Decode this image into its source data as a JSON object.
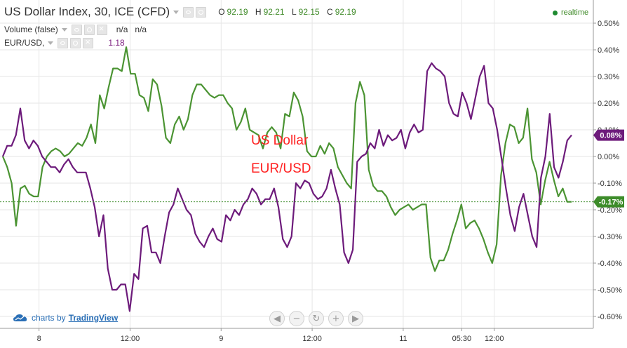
{
  "header": {
    "symbol_title": "US Dollar Index, 30, ICE (CFD)",
    "ohlc": {
      "o_label": "O",
      "o_value": "92.19",
      "h_label": "H",
      "h_value": "92.21",
      "l_label": "L",
      "l_value": "92.15",
      "c_label": "C",
      "c_value": "92.19"
    },
    "volume_label": "Volume (false)",
    "volume_value_1": "n/a",
    "volume_value_2": "n/a",
    "eurusd_label": "EUR/USD,",
    "eurusd_value": "1.18",
    "realtime_label": "realtime"
  },
  "annotations": {
    "us_dollar": "US Dollar",
    "eur_usd": "EUR/USD"
  },
  "branding": {
    "prefix": "charts by",
    "name": "TradingView"
  },
  "controls": [
    "scroll-left",
    "zoom-out",
    "reset",
    "zoom-in",
    "scroll-right"
  ],
  "colors": {
    "usd_line": "#4b9433",
    "eur_line": "#6d1b7b",
    "usd_badge": "#3d8c2a",
    "eur_badge": "#6d1b7b",
    "annotation": "#ff2020",
    "branding": "#2a6fb6"
  },
  "chart_data": {
    "type": "line",
    "y_axis": {
      "unit": "%",
      "ticks": [
        "0.50%",
        "0.40%",
        "0.30%",
        "0.20%",
        "0.10%",
        "0.00%",
        "-0.10%",
        "-0.20%",
        "-0.30%",
        "-0.40%",
        "-0.50%",
        "-0.60%"
      ],
      "tick_values": [
        0.5,
        0.4,
        0.3,
        0.2,
        0.1,
        0.0,
        -0.1,
        -0.2,
        -0.3,
        -0.4,
        -0.5,
        -0.6
      ],
      "ylim": [
        -0.62,
        0.58
      ]
    },
    "x_axis": {
      "ticks": [
        "8",
        "12:00",
        "9",
        "12:00",
        "11",
        "05:30",
        "12:00"
      ],
      "tick_positions": [
        6,
        20,
        34,
        48,
        62,
        71,
        76
      ],
      "xlim": [
        0,
        88
      ]
    },
    "grid": true,
    "series": [
      {
        "name": "US Dollar",
        "color": "#4b9433",
        "last_value_label": "-0.17%",
        "last_value": -0.17,
        "values": [
          0.0,
          -0.04,
          -0.1,
          -0.26,
          -0.12,
          -0.11,
          -0.14,
          -0.15,
          -0.15,
          -0.04,
          0.0,
          0.02,
          0.03,
          0.02,
          0.0,
          0.01,
          0.03,
          0.05,
          0.04,
          0.07,
          0.12,
          0.05,
          0.23,
          0.18,
          0.26,
          0.33,
          0.33,
          0.32,
          0.41,
          0.31,
          0.31,
          0.23,
          0.22,
          0.17,
          0.29,
          0.27,
          0.19,
          0.07,
          0.05,
          0.12,
          0.15,
          0.1,
          0.14,
          0.23,
          0.27,
          0.27,
          0.25,
          0.23,
          0.22,
          0.23,
          0.23,
          0.2,
          0.18,
          0.1,
          0.13,
          0.18,
          0.1,
          0.09,
          0.08,
          0.03,
          0.09,
          0.11,
          0.09,
          0.03,
          0.16,
          0.15,
          0.24,
          0.21,
          0.15,
          0.02,
          0.0,
          0.0,
          0.04,
          0.01,
          0.05,
          0.03,
          -0.04,
          -0.07,
          -0.1,
          -0.12,
          0.2,
          0.28,
          0.23,
          -0.05,
          -0.11,
          -0.13,
          -0.13,
          -0.15,
          -0.19,
          -0.22,
          -0.2,
          -0.19,
          -0.18,
          -0.2,
          -0.19,
          -0.18,
          -0.18,
          -0.38,
          -0.43,
          -0.39,
          -0.39,
          -0.35,
          -0.29,
          -0.24,
          -0.18,
          -0.27,
          -0.25,
          -0.24,
          -0.27,
          -0.31,
          -0.36,
          -0.4,
          -0.33,
          -0.07,
          0.05,
          0.12,
          0.11,
          0.05,
          0.07,
          0.18,
          -0.01,
          -0.06,
          -0.18,
          -0.09,
          -0.02,
          -0.09,
          -0.15,
          -0.12,
          -0.17,
          -0.17
        ]
      },
      {
        "name": "EUR/USD",
        "color": "#6d1b7b",
        "last_value_label": "0.08%",
        "last_value": 0.08,
        "values": [
          0.0,
          0.04,
          0.04,
          0.08,
          0.18,
          0.06,
          0.03,
          0.06,
          0.04,
          0.0,
          -0.02,
          -0.04,
          -0.04,
          -0.06,
          -0.03,
          -0.01,
          -0.04,
          -0.06,
          -0.06,
          -0.06,
          -0.12,
          -0.19,
          -0.3,
          -0.22,
          -0.42,
          -0.5,
          -0.5,
          -0.48,
          -0.48,
          -0.58,
          -0.44,
          -0.46,
          -0.27,
          -0.26,
          -0.36,
          -0.36,
          -0.4,
          -0.3,
          -0.21,
          -0.18,
          -0.12,
          -0.16,
          -0.2,
          -0.22,
          -0.29,
          -0.32,
          -0.34,
          -0.3,
          -0.27,
          -0.31,
          -0.32,
          -0.22,
          -0.24,
          -0.2,
          -0.22,
          -0.18,
          -0.16,
          -0.12,
          -0.14,
          -0.18,
          -0.16,
          -0.16,
          -0.12,
          -0.19,
          -0.31,
          -0.34,
          -0.3,
          -0.1,
          -0.12,
          -0.09,
          -0.1,
          -0.14,
          -0.16,
          -0.15,
          -0.12,
          -0.05,
          -0.12,
          -0.18,
          -0.36,
          -0.4,
          -0.35,
          -0.02,
          0.0,
          0.01,
          0.05,
          0.03,
          0.1,
          0.04,
          0.08,
          0.06,
          0.07,
          0.1,
          0.03,
          0.09,
          0.12,
          0.09,
          0.1,
          0.32,
          0.35,
          0.33,
          0.32,
          0.3,
          0.2,
          0.16,
          0.15,
          0.24,
          0.2,
          0.14,
          0.22,
          0.3,
          0.34,
          0.2,
          0.18,
          0.1,
          -0.01,
          -0.12,
          -0.22,
          -0.28,
          -0.19,
          -0.14,
          -0.22,
          -0.3,
          -0.34,
          -0.08,
          0.0,
          0.16,
          -0.04,
          -0.08,
          -0.02,
          0.06,
          0.08
        ]
      }
    ]
  }
}
